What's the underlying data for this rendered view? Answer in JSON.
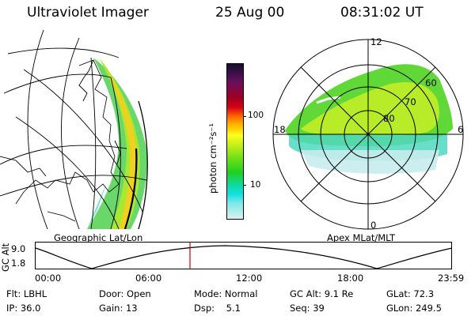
{
  "header": {
    "title": "Ultraviolet Imager",
    "date": "25 Aug 00",
    "time": "08:31:02 UT"
  },
  "map_panel": {
    "caption": "Geographic Lat/Lon"
  },
  "polar_panel": {
    "caption": "Apex MLat/MLT",
    "mlt_labels": {
      "top": "12",
      "left": "18",
      "right": "6",
      "bottom": "0"
    },
    "lat_labels": [
      "60",
      "70",
      "80"
    ]
  },
  "colorbar": {
    "unit_label": "photon cm⁻²s⁻¹",
    "ticks": [
      "100",
      "10"
    ],
    "colors": [
      "#1a0f2e",
      "#3b0f4a",
      "#6a0f5a",
      "#a00020",
      "#d80018",
      "#ff6a00",
      "#ffa500",
      "#ffd000",
      "#ffff20",
      "#c8f018",
      "#78e018",
      "#20d020",
      "#10d8a0",
      "#10e0e0",
      "#80e8e8",
      "#d8f0f0"
    ]
  },
  "altitude_strip": {
    "y_label": "GC Alt",
    "y_ticks": [
      "9.0",
      "1.8"
    ],
    "x_ticks": [
      "00:00",
      "06:00",
      "12:00",
      "18:00",
      "23:59"
    ],
    "marker_color": "#cc0000"
  },
  "info": {
    "row1": [
      {
        "key": "Flt:",
        "value": "LBHL"
      },
      {
        "key": "Door:",
        "value": "Open"
      },
      {
        "key": "Mode:",
        "value": "Normal"
      },
      {
        "key": "GC Alt:",
        "value": "9.1 Re"
      },
      {
        "key": "GLat:",
        "value": "72.3"
      }
    ],
    "row2": [
      {
        "key": "IP:",
        "value": "36.0"
      },
      {
        "key": "Gain:",
        "value": "13"
      },
      {
        "key": "Dsp:",
        "value": "5.1"
      },
      {
        "key": "Seq:",
        "value": "39"
      },
      {
        "key": "GLon:",
        "value": "249.5"
      }
    ]
  }
}
